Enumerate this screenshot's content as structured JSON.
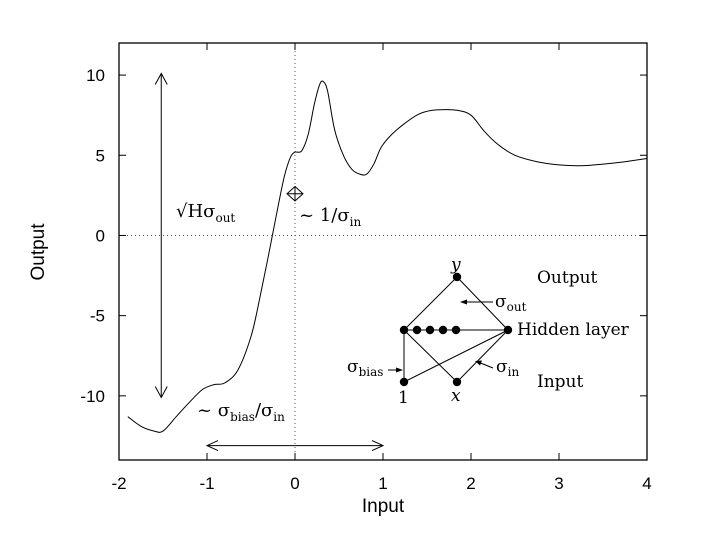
{
  "chart_data": {
    "type": "line",
    "title": "",
    "xlabel": "Input",
    "ylabel": "Output",
    "xlim": [
      -2,
      4
    ],
    "ylim": [
      -14,
      12
    ],
    "xticks": [
      -2,
      -1,
      0,
      1,
      2,
      3,
      4
    ],
    "xtick_labels": [
      "-2",
      "-1",
      "0",
      "1",
      "2",
      "3",
      "4"
    ],
    "yticks": [
      -10,
      -5,
      0,
      5,
      10
    ],
    "ytick_labels": [
      "-10",
      "-5",
      "0",
      "5",
      "10"
    ],
    "grid": false,
    "reference_lines": {
      "x": 0,
      "y": 0,
      "style": "dotted"
    },
    "series": [
      {
        "x": [
          -1.9,
          -1.75,
          -1.6,
          -1.5,
          -1.35,
          -1.2,
          -1.05,
          -0.92,
          -0.8,
          -0.65,
          -0.5,
          -0.4,
          -0.3,
          -0.2,
          -0.12,
          -0.05,
          0.0,
          0.02,
          0.08,
          0.15,
          0.22,
          0.28,
          0.32,
          0.37,
          0.45,
          0.55,
          0.65,
          0.75,
          0.82,
          0.9,
          0.98,
          1.1,
          1.25,
          1.4,
          1.55,
          1.7,
          1.85,
          2.0,
          2.15,
          2.3,
          2.5,
          2.75,
          3.0,
          3.25,
          3.5,
          3.75,
          4.0
        ],
        "y": [
          -11.3,
          -11.9,
          -12.2,
          -12.2,
          -11.3,
          -10.4,
          -9.6,
          -9.3,
          -9.2,
          -8.4,
          -6.3,
          -3.9,
          -1.2,
          1.6,
          3.7,
          4.9,
          5.2,
          5.2,
          5.3,
          6.3,
          8.2,
          9.4,
          9.6,
          9.0,
          6.6,
          5.0,
          4.1,
          3.8,
          3.85,
          4.5,
          5.5,
          6.3,
          7.0,
          7.55,
          7.8,
          7.85,
          7.8,
          7.5,
          6.5,
          5.7,
          5.0,
          4.6,
          4.4,
          4.35,
          4.45,
          4.6,
          4.8
        ]
      }
    ],
    "annotations": {
      "vertical_arrow": {
        "x": -1.52,
        "y_from": 10.1,
        "y_to": -10.1
      },
      "vertical_arrow_label": {
        "base": "√Hσ",
        "sub": "out"
      },
      "horizontal_arrow": {
        "y": -13.1,
        "x_from": -1.0,
        "x_to": 1.0
      },
      "horizontal_arrow_label": {
        "base": "~ σ",
        "sub1": "bias",
        "mid": "/σ",
        "sub2": "in"
      },
      "small_arrow": {
        "x": 0.0,
        "y_center": 2.6,
        "half_height": 0.45
      },
      "small_arrow_label": {
        "base": "~ 1/σ",
        "sub": "in"
      }
    },
    "network_diagram": {
      "nodes": {
        "output": "y",
        "hidden_count": 7,
        "input_bias": "1",
        "input_x": "x"
      },
      "labels": {
        "output": "Output",
        "hidden": "Hidden layer",
        "input": "Input",
        "sigma_out": {
          "base": "σ",
          "sub": "out"
        },
        "sigma_bias": {
          "base": "σ",
          "sub": "bias"
        },
        "sigma_in": {
          "base": "σ",
          "sub": "in"
        }
      }
    }
  }
}
